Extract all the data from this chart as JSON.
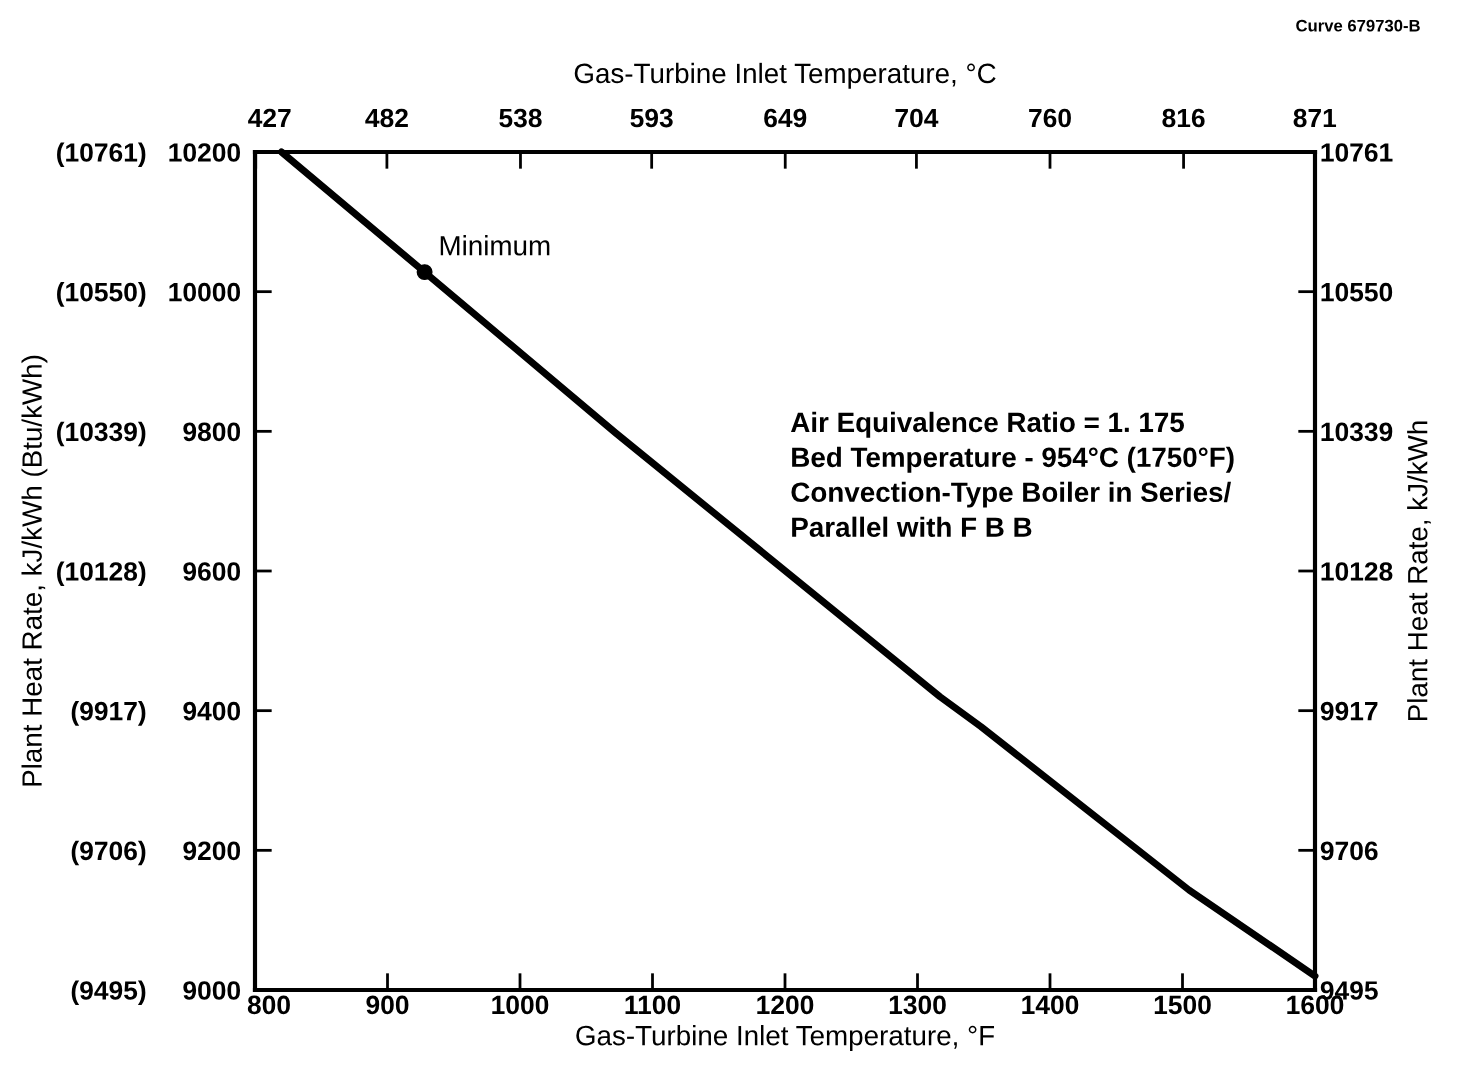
{
  "chart_data": {
    "type": "line",
    "xlabel": "Gas-Turbine Inlet Temperature, °F",
    "x2label": "Gas-Turbine Inlet Temperature, °C",
    "ylabel": "Plant Heat Rate, kJ/kWh (Btu/kWh)",
    "y2label": "Plant Heat Rate, kJ/kWh",
    "xlim": [
      800,
      1600
    ],
    "xticks": [
      800,
      900,
      1000,
      1100,
      1200,
      1300,
      1400,
      1500,
      1600
    ],
    "x2lim": [
      426.7,
      871.1
    ],
    "x2ticks": [
      427,
      482,
      538,
      593,
      649,
      704,
      760,
      816,
      871
    ],
    "ylim": [
      9000,
      10200
    ],
    "yticks": [
      9000,
      9200,
      9400,
      9600,
      9800,
      10000,
      10200
    ],
    "y3lim": [
      9495,
      10761
    ],
    "y3ticks": [
      {
        "value": 9495,
        "label": "(9495)"
      },
      {
        "value": 9706,
        "label": "(9706)"
      },
      {
        "value": 9917,
        "label": "(9917)"
      },
      {
        "value": 10128,
        "label": "(10128)"
      },
      {
        "value": 10339,
        "label": "(10339)"
      },
      {
        "value": 10550,
        "label": "(10550)"
      },
      {
        "value": 10761,
        "label": "(10761)"
      }
    ],
    "y2lim": [
      9495,
      10761
    ],
    "y2ticks": [
      9495,
      9706,
      9917,
      10128,
      10339,
      10550,
      10761
    ],
    "series": [
      {
        "color": "#000000",
        "x": [
          820,
          928,
          1072,
          1317,
          1348,
          1505,
          1600
        ],
        "values": [
          10200,
          10028,
          9798,
          9420,
          9377,
          9143,
          9020
        ]
      },
      {
        "type": "scatter",
        "color": "#000000",
        "marker": "circle",
        "x": [
          928
        ],
        "values": [
          10028
        ]
      }
    ],
    "annotations": [
      {
        "text": "Minimum",
        "x": 928,
        "y": 10028
      },
      "Air Equivalence Ratio = 1. 175\nBed Temperature - 954°C (1750°F)\nConvection-Type Boiler in Series/\nParallel with F B B",
      "Curve 679730-B"
    ],
    "grid": false,
    "legend": false
  }
}
